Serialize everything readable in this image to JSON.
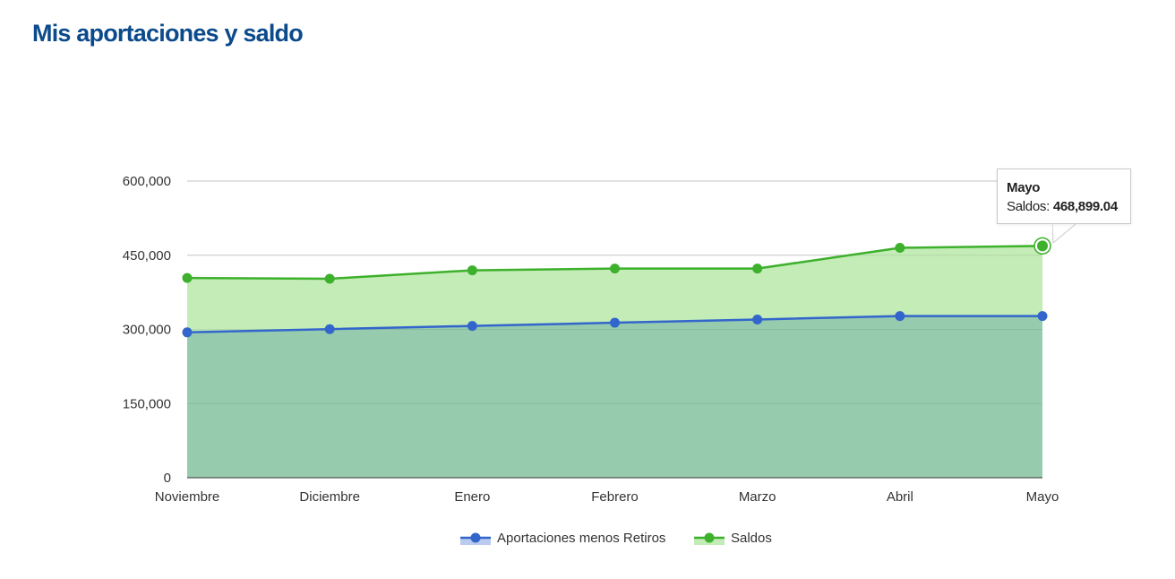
{
  "title": "Mis aportaciones y saldo",
  "colors": {
    "title": "#0b4a8b",
    "aportaciones_line": "#3366cc",
    "saldos_line": "#3db02c",
    "saldos_area": "#c3ecb6",
    "aportaciones_area": "#96cbae"
  },
  "chart_data": {
    "type": "area",
    "categories": [
      "Noviembre",
      "Diciembre",
      "Enero",
      "Febrero",
      "Marzo",
      "Abril",
      "Mayo"
    ],
    "y_ticks": [
      "0",
      "150,000",
      "300,000",
      "450,000",
      "600,000"
    ],
    "ylim": [
      0,
      600000
    ],
    "grid": true,
    "legend_position": "bottom-center",
    "series": [
      {
        "name": "Aportaciones menos Retiros",
        "values": [
          294000,
          300500,
          307000,
          313500,
          320000,
          327000,
          327000
        ]
      },
      {
        "name": "Saldos",
        "values": [
          404000,
          402500,
          419500,
          423000,
          423000,
          465000,
          468899.04
        ]
      }
    ],
    "tooltip": {
      "category": "Mayo",
      "series_label": "Saldos: ",
      "value": "468,899.04"
    }
  }
}
